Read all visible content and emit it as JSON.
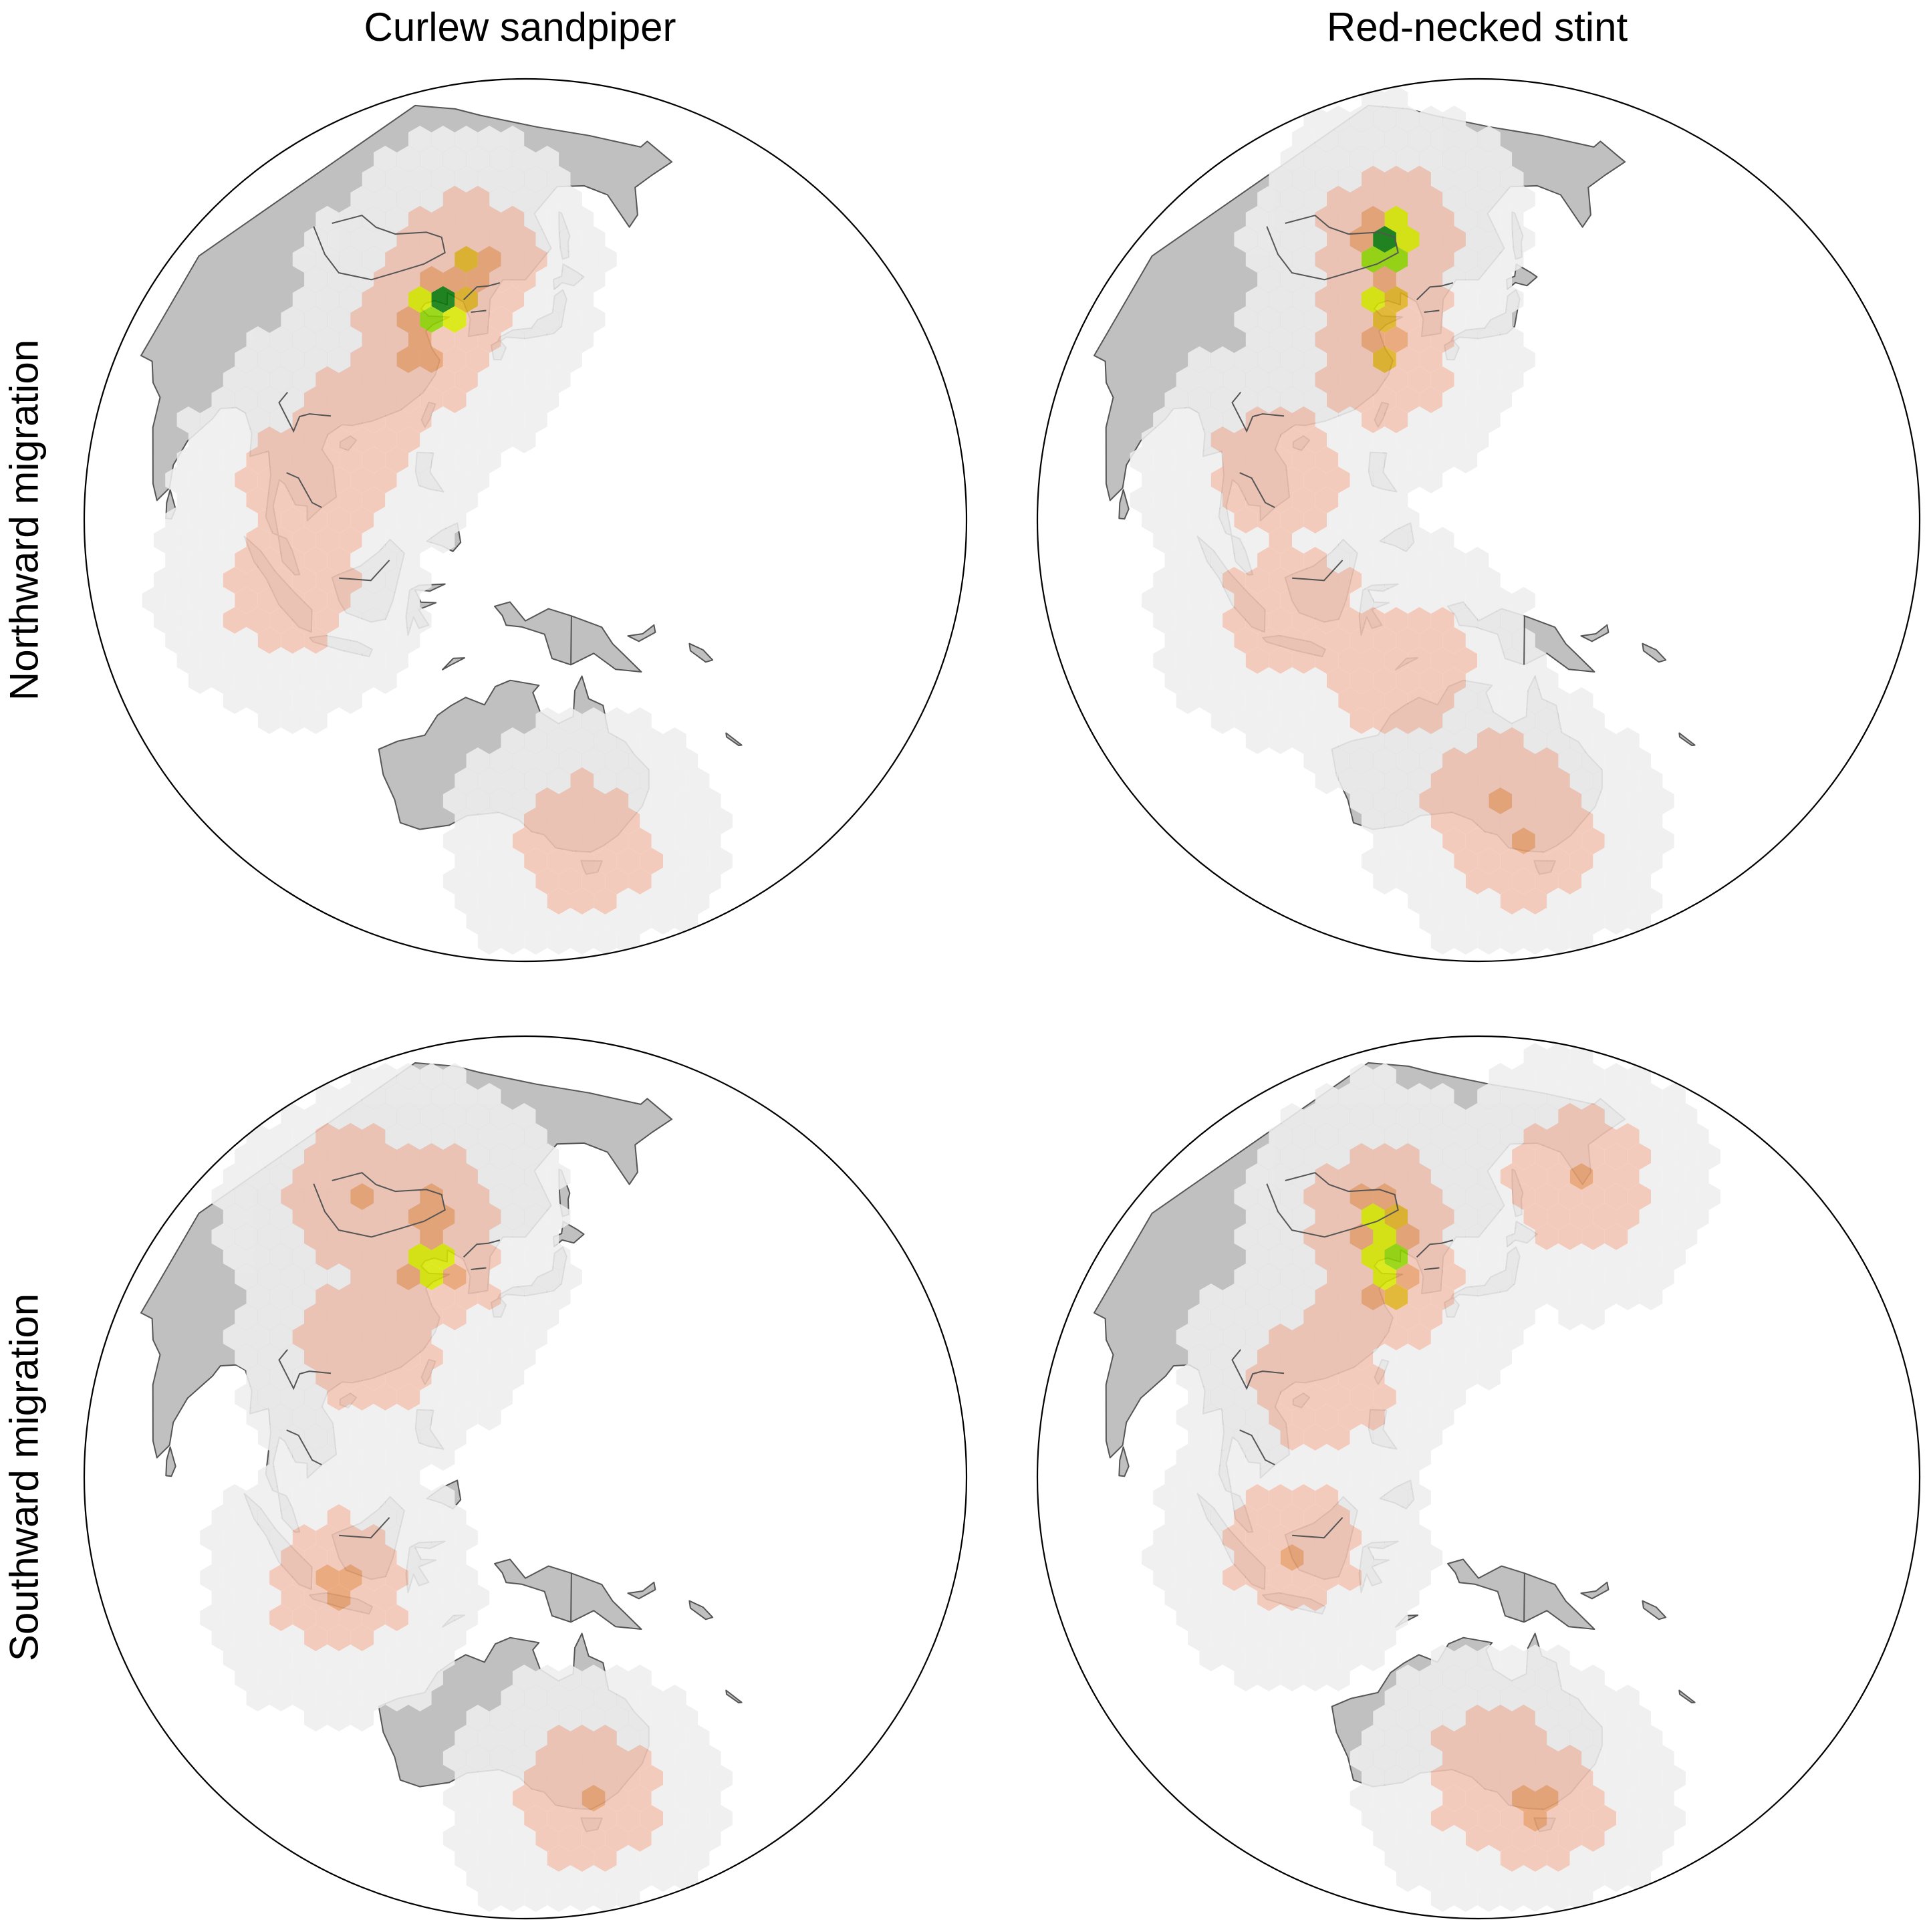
{
  "columns": [
    {
      "title": "Curlew sandpiper"
    },
    {
      "title": "Red-necked stint"
    }
  ],
  "rows": [
    {
      "title": "Northward migration"
    },
    {
      "title": "Southward migration"
    }
  ],
  "colors": {
    "land": "#c0c0c0",
    "coast": "#555555",
    "low": "#eeeeee",
    "mid": "#f2c4b4",
    "high": "#e8a070",
    "peak_orange": "#dfb020",
    "peak_yellow": "#d7e600",
    "peak_lightgreen": "#8fd400",
    "peak_green": "#2e9d10",
    "peak_darkgreen": "#0a7a0a"
  },
  "map_data": {
    "type": "hexbin-density-map",
    "projection": "orthographic",
    "panels": [
      {
        "species": "Curlew sandpiper",
        "season": "Northward migration",
        "hotspots": [
          {
            "lon": 121.5,
            "lat": 39.0,
            "intensity": 1.0
          },
          {
            "lon": 119.5,
            "lat": 38.2,
            "intensity": 0.9
          },
          {
            "lon": 124.5,
            "lat": 45.0,
            "intensity": 0.6
          },
          {
            "lon": 118.5,
            "lat": 32.0,
            "intensity": 0.45
          },
          {
            "lon": 110.0,
            "lat": 20.0,
            "intensity": 0.35
          },
          {
            "lon": 105.0,
            "lat": 13.0,
            "intensity": 0.3
          },
          {
            "lon": 103.0,
            "lat": 0.0,
            "intensity": 0.25
          },
          {
            "lon": 145.0,
            "lat": -38.0,
            "intensity": 0.35
          }
        ]
      },
      {
        "species": "Red-necked stint",
        "season": "Northward migration",
        "hotspots": [
          {
            "lon": 117.0,
            "lat": 49.5,
            "intensity": 1.0
          },
          {
            "lon": 117.0,
            "lat": 46.5,
            "intensity": 0.9
          },
          {
            "lon": 119.0,
            "lat": 39.0,
            "intensity": 0.75
          },
          {
            "lon": 120.5,
            "lat": 32.0,
            "intensity": 0.55
          },
          {
            "lon": 107.0,
            "lat": 15.0,
            "intensity": 0.35
          },
          {
            "lon": 110.0,
            "lat": -3.0,
            "intensity": 0.35
          },
          {
            "lon": 125.0,
            "lat": -10.0,
            "intensity": 0.35
          },
          {
            "lon": 138.0,
            "lat": -30.0,
            "intensity": 0.4
          },
          {
            "lon": 143.0,
            "lat": -36.0,
            "intensity": 0.45
          }
        ]
      },
      {
        "species": "Curlew sandpiper",
        "season": "Southward migration",
        "hotspots": [
          {
            "lon": 119.5,
            "lat": 38.5,
            "intensity": 0.85
          },
          {
            "lon": 116.0,
            "lat": 47.0,
            "intensity": 0.5
          },
          {
            "lon": 100.0,
            "lat": 48.0,
            "intensity": 0.35
          },
          {
            "lon": 112.0,
            "lat": 27.0,
            "intensity": 0.3
          },
          {
            "lon": 110.0,
            "lat": -5.0,
            "intensity": 0.45
          },
          {
            "lon": 145.0,
            "lat": -37.0,
            "intensity": 0.35
          }
        ]
      },
      {
        "species": "Red-necked stint",
        "season": "Southward migration",
        "hotspots": [
          {
            "lon": 116.0,
            "lat": 46.0,
            "intensity": 0.75
          },
          {
            "lon": 118.0,
            "lat": 43.0,
            "intensity": 0.7
          },
          {
            "lon": 119.5,
            "lat": 39.0,
            "intensity": 0.85
          },
          {
            "lon": 121.0,
            "lat": 35.5,
            "intensity": 0.7
          },
          {
            "lon": 157.0,
            "lat": 52.0,
            "intensity": 0.4
          },
          {
            "lon": 112.0,
            "lat": 22.0,
            "intensity": 0.35
          },
          {
            "lon": 110.0,
            "lat": 0.0,
            "intensity": 0.4
          },
          {
            "lon": 138.0,
            "lat": -33.0,
            "intensity": 0.35
          },
          {
            "lon": 145.0,
            "lat": -38.0,
            "intensity": 0.45
          }
        ]
      }
    ]
  }
}
